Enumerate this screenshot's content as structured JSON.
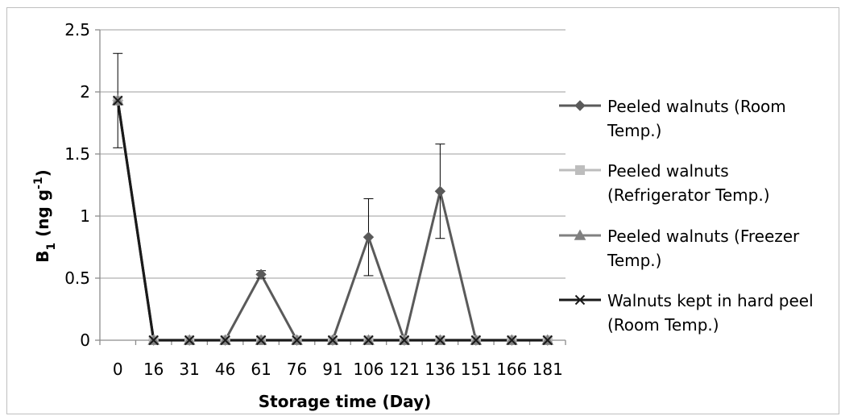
{
  "chart_data": {
    "type": "line",
    "xlabel": "Storage time (Day)",
    "ylabel": {
      "base": "B",
      "sub": "1",
      "rest": " (ng g",
      "sup": "-1",
      "end": ")"
    },
    "x": [
      "0",
      "16",
      "31",
      "46",
      "61",
      "76",
      "91",
      "106",
      "121",
      "136",
      "151",
      "166",
      "181"
    ],
    "ylim": [
      0,
      2.5
    ],
    "yticks": [
      "0",
      "0.5",
      "1",
      "1.5",
      "2",
      "2.5"
    ],
    "grid": "horizontal",
    "legend_position": "right",
    "series": [
      {
        "name": "Peeled walnuts (Room Temp.)",
        "legend_lines": [
          "Peeled walnuts (Room",
          "Temp.)"
        ],
        "marker": "diamond",
        "color": "#5a5a5a",
        "values": [
          1.93,
          0,
          0,
          0,
          0.53,
          0,
          0,
          0.83,
          0,
          1.2,
          0,
          0,
          0
        ],
        "errors": [
          0.38,
          0,
          0,
          0,
          0.03,
          0,
          0,
          0.31,
          0,
          0.38,
          0,
          0,
          0
        ]
      },
      {
        "name": "Peeled walnuts (Refrigerator Temp.)",
        "legend_lines": [
          "Peeled walnuts",
          "(Refrigerator Temp.)"
        ],
        "marker": "square",
        "color": "#bdbdbd",
        "values": [
          1.93,
          0,
          0,
          0,
          0,
          0,
          0,
          0,
          0,
          0,
          0,
          0,
          0
        ]
      },
      {
        "name": "Peeled walnuts (Freezer Temp.)",
        "legend_lines": [
          "Peeled walnuts (Freezer",
          "Temp.)"
        ],
        "marker": "triangle",
        "color": "#808080",
        "values": [
          1.93,
          0,
          0,
          0,
          0,
          0,
          0,
          0,
          0,
          0,
          0,
          0,
          0
        ]
      },
      {
        "name": "Walnuts kept in hard peel (Room Temp.)",
        "legend_lines": [
          "Walnuts kept in hard peel",
          "(Room Temp.)"
        ],
        "marker": "x",
        "color": "#1a1a1a",
        "values": [
          1.93,
          0,
          0,
          0,
          0,
          0,
          0,
          0,
          0,
          0,
          0,
          0,
          0
        ]
      }
    ]
  }
}
